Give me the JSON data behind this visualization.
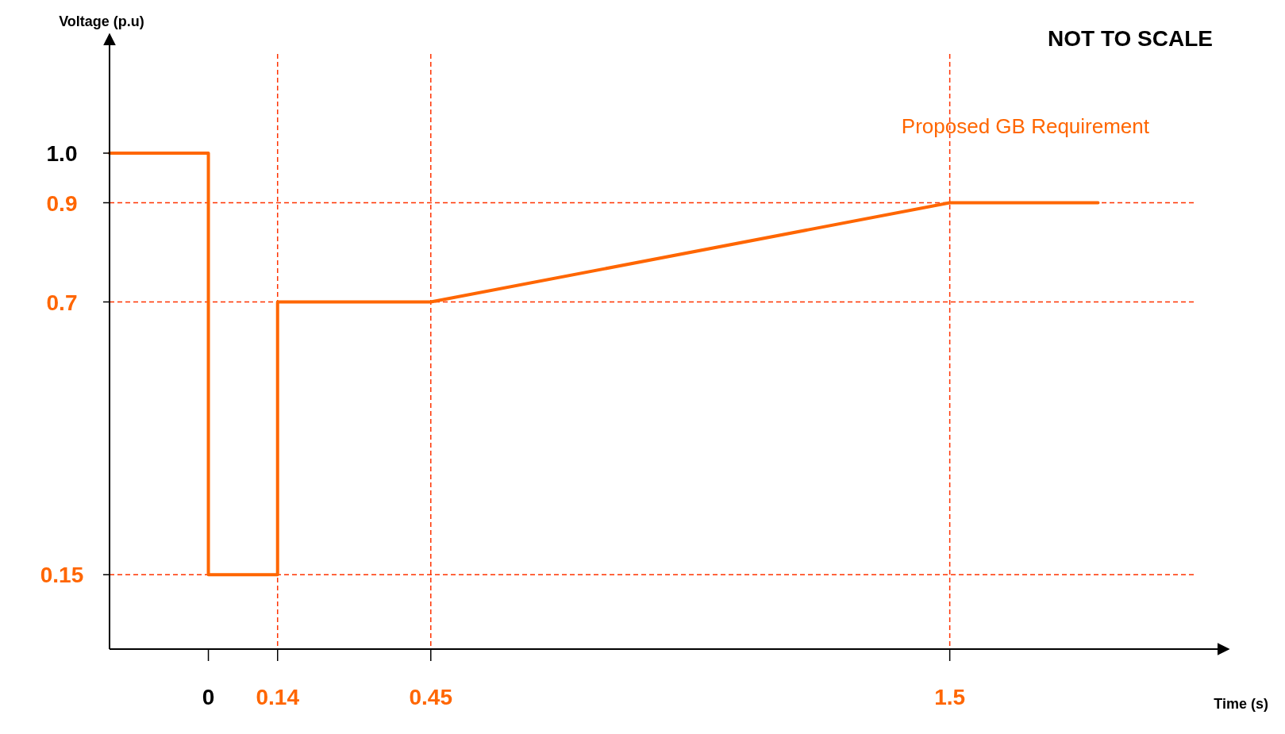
{
  "chart_data": {
    "type": "line",
    "ylabel": "Voltage (p.u)",
    "xlabel": "Time (s)",
    "annotations": [
      "NOT TO SCALE"
    ],
    "x": [
      -0.2,
      0,
      0,
      0.14,
      0.14,
      0.45,
      1.5,
      1.8
    ],
    "series": [
      {
        "name": "Proposed GB Requirement",
        "color": "#ff6600",
        "values": [
          1.0,
          1.0,
          0.15,
          0.15,
          0.7,
          0.7,
          0.9,
          0.9
        ]
      }
    ],
    "xlim": [
      -0.2,
      2.0
    ],
    "xticks": [
      0,
      0.14,
      0.45,
      1.5
    ],
    "ylim": [
      0,
      1.2
    ],
    "yticks": [
      0.15,
      0.7,
      0.9,
      {
        "value": 1.0,
        "label": "1.0"
      }
    ],
    "ref_lines": [
      {
        "axis": "y",
        "value": 0.9,
        "color": "#ff3300",
        "line_style": "dashed"
      },
      {
        "axis": "y",
        "value": 0.7,
        "color": "#ff3300",
        "line_style": "dashed"
      },
      {
        "axis": "y",
        "value": 0.15,
        "color": "#ff3300",
        "line_style": "dashed"
      },
      {
        "axis": "x",
        "value": 0.14,
        "color": "#ff3300",
        "line_style": "dashed"
      },
      {
        "axis": "x",
        "value": 0.45,
        "color": "#ff3300",
        "line_style": "dashed"
      },
      {
        "axis": "x",
        "value": 1.5,
        "color": "#ff3300",
        "line_style": "dashed"
      }
    ],
    "legend": "top right",
    "grid": false,
    "marker": "none",
    "line_style": "solid"
  }
}
